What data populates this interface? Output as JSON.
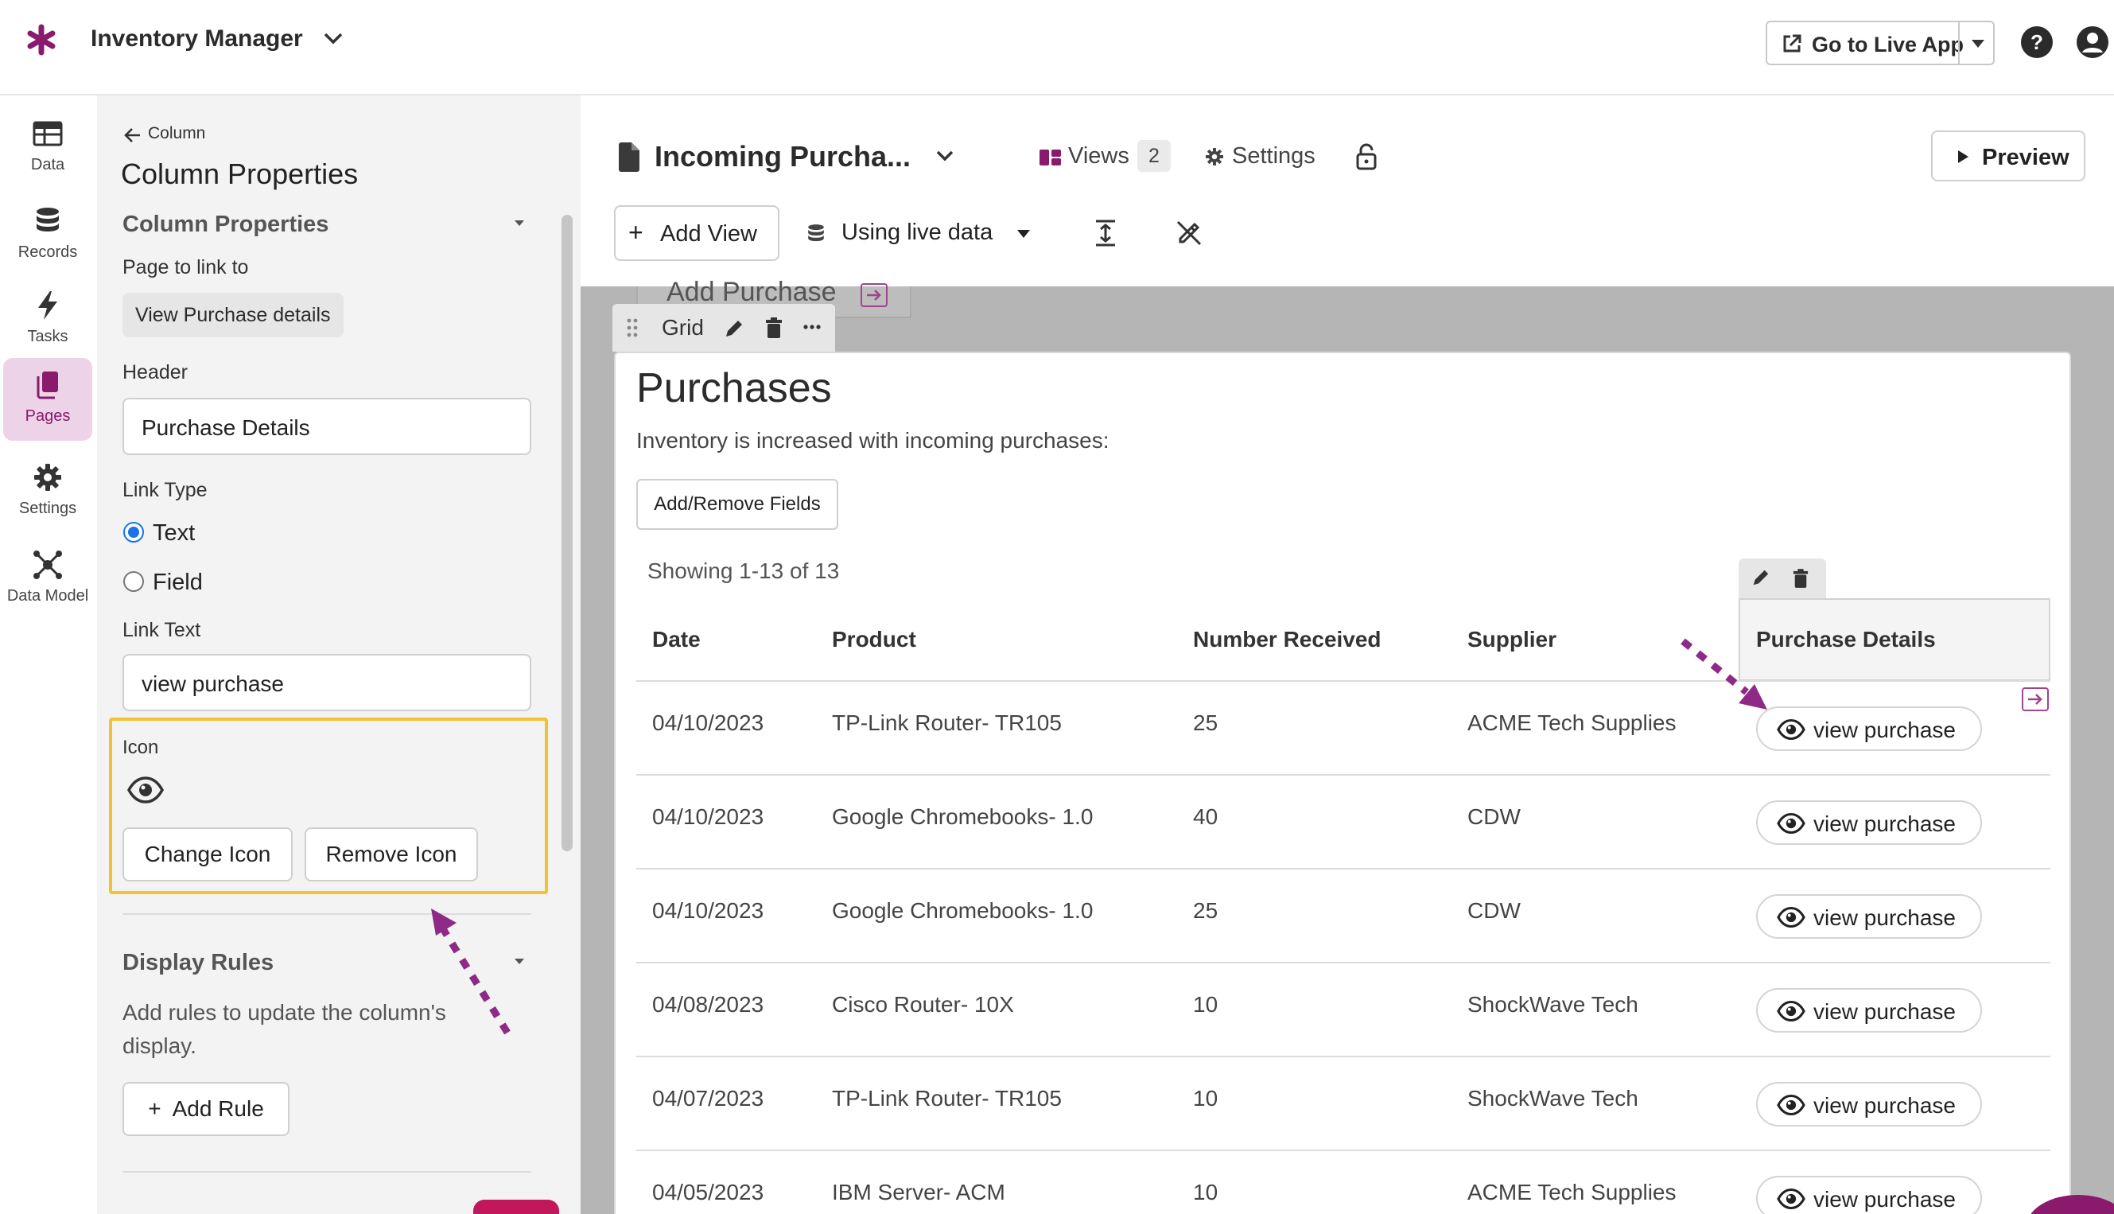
{
  "app": {
    "title": "Inventory Manager",
    "live_app_label": "Go to Live App",
    "brand_color": "#8a1a6b"
  },
  "nav": {
    "items": [
      {
        "label": "Data",
        "icon": "table-icon"
      },
      {
        "label": "Records",
        "icon": "database-icon"
      },
      {
        "label": "Tasks",
        "icon": "lightning-icon"
      },
      {
        "label": "Pages",
        "icon": "pages-icon",
        "active": true
      },
      {
        "label": "Settings",
        "icon": "gear-icon"
      },
      {
        "label": "Data Model",
        "icon": "data-model-icon"
      }
    ]
  },
  "props": {
    "back_label": "Column",
    "title": "Column Properties",
    "section_title": "Column Properties",
    "page_link_label": "Page to link to",
    "page_link_value": "View Purchase details",
    "header_label": "Header",
    "header_value": "Purchase Details",
    "link_type_label": "Link Type",
    "link_type_options": [
      "Text",
      "Field"
    ],
    "link_text_label": "Link Text",
    "link_text_value": "view purchase",
    "icon_label": "Icon",
    "icon_value": "eye-icon",
    "change_icon": "Change Icon",
    "remove_icon": "Remove Icon",
    "display_rules_title": "Display Rules",
    "display_rules_desc_1": "Add rules to update the column's",
    "display_rules_desc_2": "display.",
    "add_rule": "Add Rule"
  },
  "editor": {
    "page_name": "Incoming Purcha...",
    "views_label": "Views",
    "views_count": "2",
    "settings_label": "Settings",
    "preview_label": "Preview",
    "add_view_label": "Add View",
    "live_data_label": "Using live data"
  },
  "canvas": {
    "ghost_view_label": "Add Purchase",
    "grid_tab_label": "Grid",
    "title": "Purchases",
    "subtitle": "Inventory is increased with incoming purchases:",
    "add_remove_fields": "Add/Remove Fields",
    "showing": "Showing 1-13 of 13",
    "columns": [
      "Date",
      "Product",
      "Number Received",
      "Supplier",
      "Purchase Details"
    ],
    "rows": [
      [
        "04/10/2023",
        "TP-Link Router- TR105",
        "25",
        "ACME Tech Supplies",
        "view purchase"
      ],
      [
        "04/10/2023",
        "Google Chromebooks- 1.0",
        "40",
        "CDW",
        "view purchase"
      ],
      [
        "04/10/2023",
        "Google Chromebooks- 1.0",
        "25",
        "CDW",
        "view purchase"
      ],
      [
        "04/08/2023",
        "Cisco Router- 10X",
        "10",
        "ShockWave Tech",
        "view purchase"
      ],
      [
        "04/07/2023",
        "TP-Link Router- TR105",
        "10",
        "ShockWave Tech",
        "view purchase"
      ],
      [
        "04/05/2023",
        "IBM Server- ACM",
        "10",
        "ACME Tech Supplies",
        "view purchase"
      ]
    ]
  },
  "colors": {
    "highlight_border": "#f1c232",
    "annotation_arrow": "#8e2a86",
    "accent": "#8a1a6b"
  }
}
